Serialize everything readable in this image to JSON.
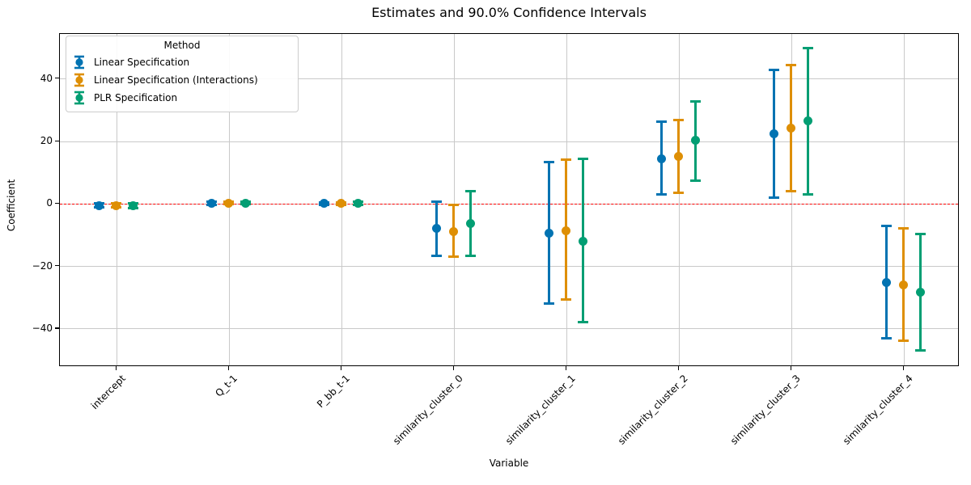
{
  "chart_data": {
    "type": "errorbar",
    "title": "Estimates and 90.0% Confidence Intervals",
    "xlabel": "Variable",
    "ylabel": "Coefficient",
    "categories": [
      "intercept",
      "Q_t-1",
      "P_bb_t-1",
      "similarity_cluster_0",
      "similarity_cluster_1",
      "similarity_cluster_2",
      "similarity_cluster_3",
      "similarity_cluster_4"
    ],
    "yticks": [
      40,
      20,
      0,
      -20,
      -40
    ],
    "ylim": [
      -52.3,
      54.3
    ],
    "grid": true,
    "zero_line": {
      "y": 0,
      "color": "#ff0000",
      "style": "dashed"
    },
    "legend": {
      "title": "Method",
      "position": "upper left"
    },
    "series": [
      {
        "name": "Linear Specification",
        "color": "#0173b2",
        "estimates": [
          -0.6,
          0.1,
          0.0,
          -8.0,
          -9.5,
          14.3,
          22.4,
          -25.3
        ],
        "ci_low": [
          -1.3,
          -0.3,
          -0.4,
          -16.7,
          -31.9,
          2.9,
          1.9,
          -43.2
        ],
        "ci_high": [
          0.1,
          0.5,
          0.4,
          0.6,
          13.4,
          26.2,
          42.9,
          -7.1
        ]
      },
      {
        "name": "Linear Specification (Interactions)",
        "color": "#de8f05",
        "estimates": [
          -0.6,
          0.2,
          0.0,
          -8.9,
          -8.7,
          15.0,
          24.2,
          -26.0
        ],
        "ci_low": [
          -1.3,
          -0.2,
          -0.4,
          -17.1,
          -30.8,
          3.4,
          4.0,
          -43.9
        ],
        "ci_high": [
          0.1,
          0.6,
          0.4,
          -0.4,
          14.0,
          26.8,
          44.3,
          -7.8
        ]
      },
      {
        "name": "PLR Specification",
        "color": "#029e73",
        "estimates": [
          -0.7,
          0.2,
          0.1,
          -6.5,
          -12.1,
          20.4,
          26.6,
          -28.3
        ],
        "ci_low": [
          -1.4,
          -0.2,
          -0.3,
          -16.6,
          -37.9,
          7.4,
          2.9,
          -46.9
        ],
        "ci_high": [
          0.0,
          0.6,
          0.5,
          3.9,
          14.2,
          32.7,
          49.7,
          -9.7
        ]
      }
    ]
  }
}
